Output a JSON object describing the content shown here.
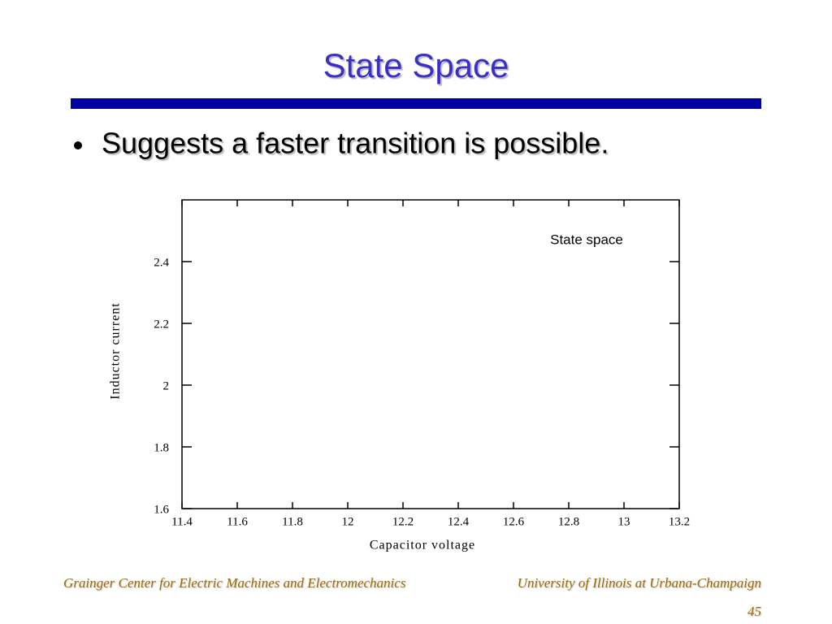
{
  "slide": {
    "title": "State Space",
    "bullet": "Suggests a faster transition is possible.",
    "footer_left": "Grainger Center for Electric Machines and Electromechanics",
    "footer_right": "University of Illinois at Urbana-Champaign",
    "page_number": "45"
  },
  "chart_data": {
    "type": "line",
    "annotation": "State space",
    "xlabel": "Capacitor voltage",
    "ylabel": "Inductor current",
    "xlim": [
      11.4,
      13.2
    ],
    "xticks": [
      11.4,
      11.6,
      11.8,
      12,
      12.2,
      12.4,
      12.6,
      12.8,
      13,
      13.2
    ],
    "ylim": [
      1.6,
      2.6
    ],
    "yticks": [
      1.6,
      1.8,
      2,
      2.2,
      2.4
    ],
    "series": []
  }
}
